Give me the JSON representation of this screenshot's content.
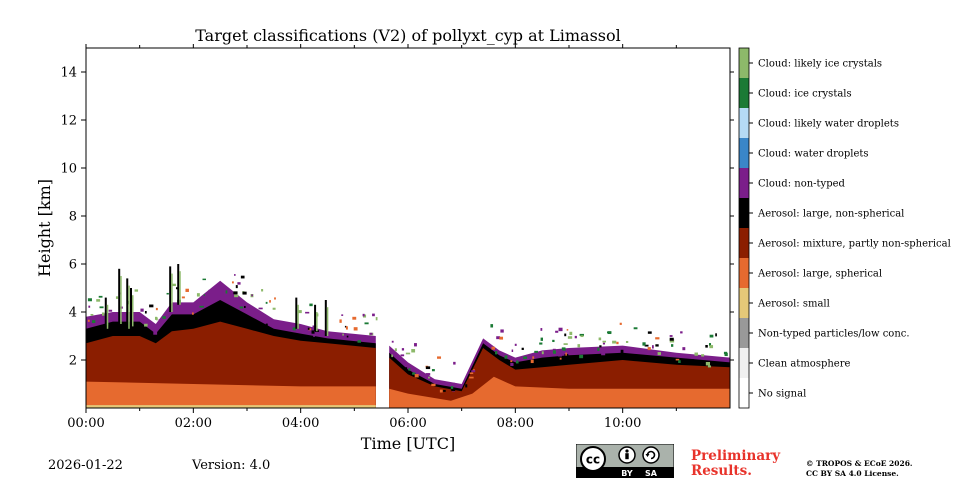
{
  "chart_data": {
    "type": "heatmap",
    "title": "Target classifications (V2) of pollyxt_cyp at Limassol",
    "xlabel": "Time [UTC]",
    "ylabel": "Height [km]",
    "xlim_hours": [
      0,
      12
    ],
    "ylim_km": [
      0,
      15
    ],
    "x_ticks": [
      {
        "value": 0,
        "label": "00:00"
      },
      {
        "value": 2,
        "label": "02:00"
      },
      {
        "value": 4,
        "label": "04:00"
      },
      {
        "value": 6,
        "label": "06:00"
      },
      {
        "value": 8,
        "label": "08:00"
      },
      {
        "value": 10,
        "label": "10:00"
      }
    ],
    "y_ticks": [
      {
        "value": 2,
        "label": "2"
      },
      {
        "value": 4,
        "label": "4"
      },
      {
        "value": 6,
        "label": "6"
      },
      {
        "value": 8,
        "label": "8"
      },
      {
        "value": 10,
        "label": "10"
      },
      {
        "value": 12,
        "label": "12"
      },
      {
        "value": 14,
        "label": "14"
      }
    ],
    "classes": [
      {
        "label": "No signal",
        "color": "#ffffff"
      },
      {
        "label": "Clean atmosphere",
        "color": "#f0f0f0"
      },
      {
        "label": "Non-typed particles/low conc.",
        "color": "#999999"
      },
      {
        "label": "Aerosol: small",
        "color": "#e5c878"
      },
      {
        "label": "Aerosol: large, spherical",
        "color": "#e66a2f"
      },
      {
        "label": "Aerosol: mixture, partly non-spherical",
        "color": "#8b1e00"
      },
      {
        "label": "Aerosol: large, non-spherical",
        "color": "#000000"
      },
      {
        "label": "Cloud: non-typed",
        "color": "#7b1e8a"
      },
      {
        "label": "Cloud: water droplets",
        "color": "#3a86c8"
      },
      {
        "label": "Cloud: likely water droplets",
        "color": "#b5daf5"
      },
      {
        "label": "Cloud: ice crystals",
        "color": "#1b7a35"
      },
      {
        "label": "Cloud: likely ice crystals",
        "color": "#8db96a"
      }
    ],
    "data_gaps_hours": [
      [
        5.4,
        5.65
      ]
    ],
    "layers": {
      "large_spherical_top_km": [
        [
          0,
          1.1
        ],
        [
          2,
          1.0
        ],
        [
          4,
          0.9
        ],
        [
          5.4,
          0.9
        ],
        [
          5.65,
          0.8
        ],
        [
          6,
          0.6
        ],
        [
          6.8,
          0.3
        ],
        [
          7.2,
          0.6
        ],
        [
          7.6,
          1.3
        ],
        [
          8,
          0.9
        ],
        [
          9,
          0.8
        ],
        [
          10,
          0.8
        ],
        [
          11,
          0.8
        ],
        [
          12,
          0.8
        ]
      ],
      "mixture_top_km": [
        [
          0,
          2.7
        ],
        [
          0.5,
          3.0
        ],
        [
          1,
          3.0
        ],
        [
          1.3,
          2.7
        ],
        [
          1.6,
          3.2
        ],
        [
          2,
          3.3
        ],
        [
          2.5,
          3.6
        ],
        [
          3,
          3.3
        ],
        [
          3.5,
          3.0
        ],
        [
          4,
          2.8
        ],
        [
          4.5,
          2.7
        ],
        [
          5.4,
          2.5
        ],
        [
          5.65,
          2.1
        ],
        [
          6,
          1.4
        ],
        [
          6.5,
          0.9
        ],
        [
          7,
          0.7
        ],
        [
          7.4,
          2.5
        ],
        [
          7.7,
          2.0
        ],
        [
          8,
          1.6
        ],
        [
          8.5,
          1.7
        ],
        [
          9,
          1.8
        ],
        [
          10,
          2.0
        ],
        [
          11,
          1.8
        ],
        [
          12,
          1.7
        ]
      ],
      "nonspherical_top_km": [
        [
          0,
          3.3
        ],
        [
          0.5,
          3.6
        ],
        [
          1,
          3.6
        ],
        [
          1.3,
          3.1
        ],
        [
          1.6,
          3.9
        ],
        [
          2,
          3.9
        ],
        [
          2.5,
          4.5
        ],
        [
          3,
          3.9
        ],
        [
          3.5,
          3.3
        ],
        [
          4,
          3.1
        ],
        [
          4.5,
          2.9
        ],
        [
          5.4,
          2.7
        ],
        [
          5.65,
          2.3
        ],
        [
          6,
          1.6
        ],
        [
          6.5,
          1.0
        ],
        [
          7,
          0.8
        ],
        [
          7.4,
          2.7
        ],
        [
          7.7,
          2.2
        ],
        [
          8,
          1.9
        ],
        [
          8.5,
          2.1
        ],
        [
          9,
          2.2
        ],
        [
          10,
          2.3
        ],
        [
          11,
          2.1
        ],
        [
          12,
          1.9
        ]
      ],
      "cloud_nontyped_top_km": [
        [
          0,
          3.8
        ],
        [
          0.5,
          4.0
        ],
        [
          1,
          4.0
        ],
        [
          1.3,
          3.5
        ],
        [
          1.6,
          4.4
        ],
        [
          2,
          4.4
        ],
        [
          2.5,
          5.3
        ],
        [
          3,
          4.4
        ],
        [
          3.5,
          3.7
        ],
        [
          4,
          3.5
        ],
        [
          4.5,
          3.2
        ],
        [
          5.4,
          3.0
        ],
        [
          5.65,
          2.6
        ],
        [
          6,
          1.9
        ],
        [
          6.5,
          1.2
        ],
        [
          7,
          1.0
        ],
        [
          7.4,
          2.9
        ],
        [
          7.7,
          2.4
        ],
        [
          8,
          2.1
        ],
        [
          8.5,
          2.4
        ],
        [
          9,
          2.5
        ],
        [
          10,
          2.6
        ],
        [
          11,
          2.3
        ],
        [
          12,
          2.1
        ]
      ]
    }
  },
  "footer": {
    "date": "2026-01-22",
    "version": "Version: 4.0",
    "preliminary_line1": "Preliminary",
    "preliminary_line2": "Results.",
    "license_line1": "© TROPOS & ECoE 2026.",
    "license_line2": "CC BY SA 4.0 License.",
    "cc_badge": {
      "by": "BY",
      "sa": "SA"
    }
  }
}
